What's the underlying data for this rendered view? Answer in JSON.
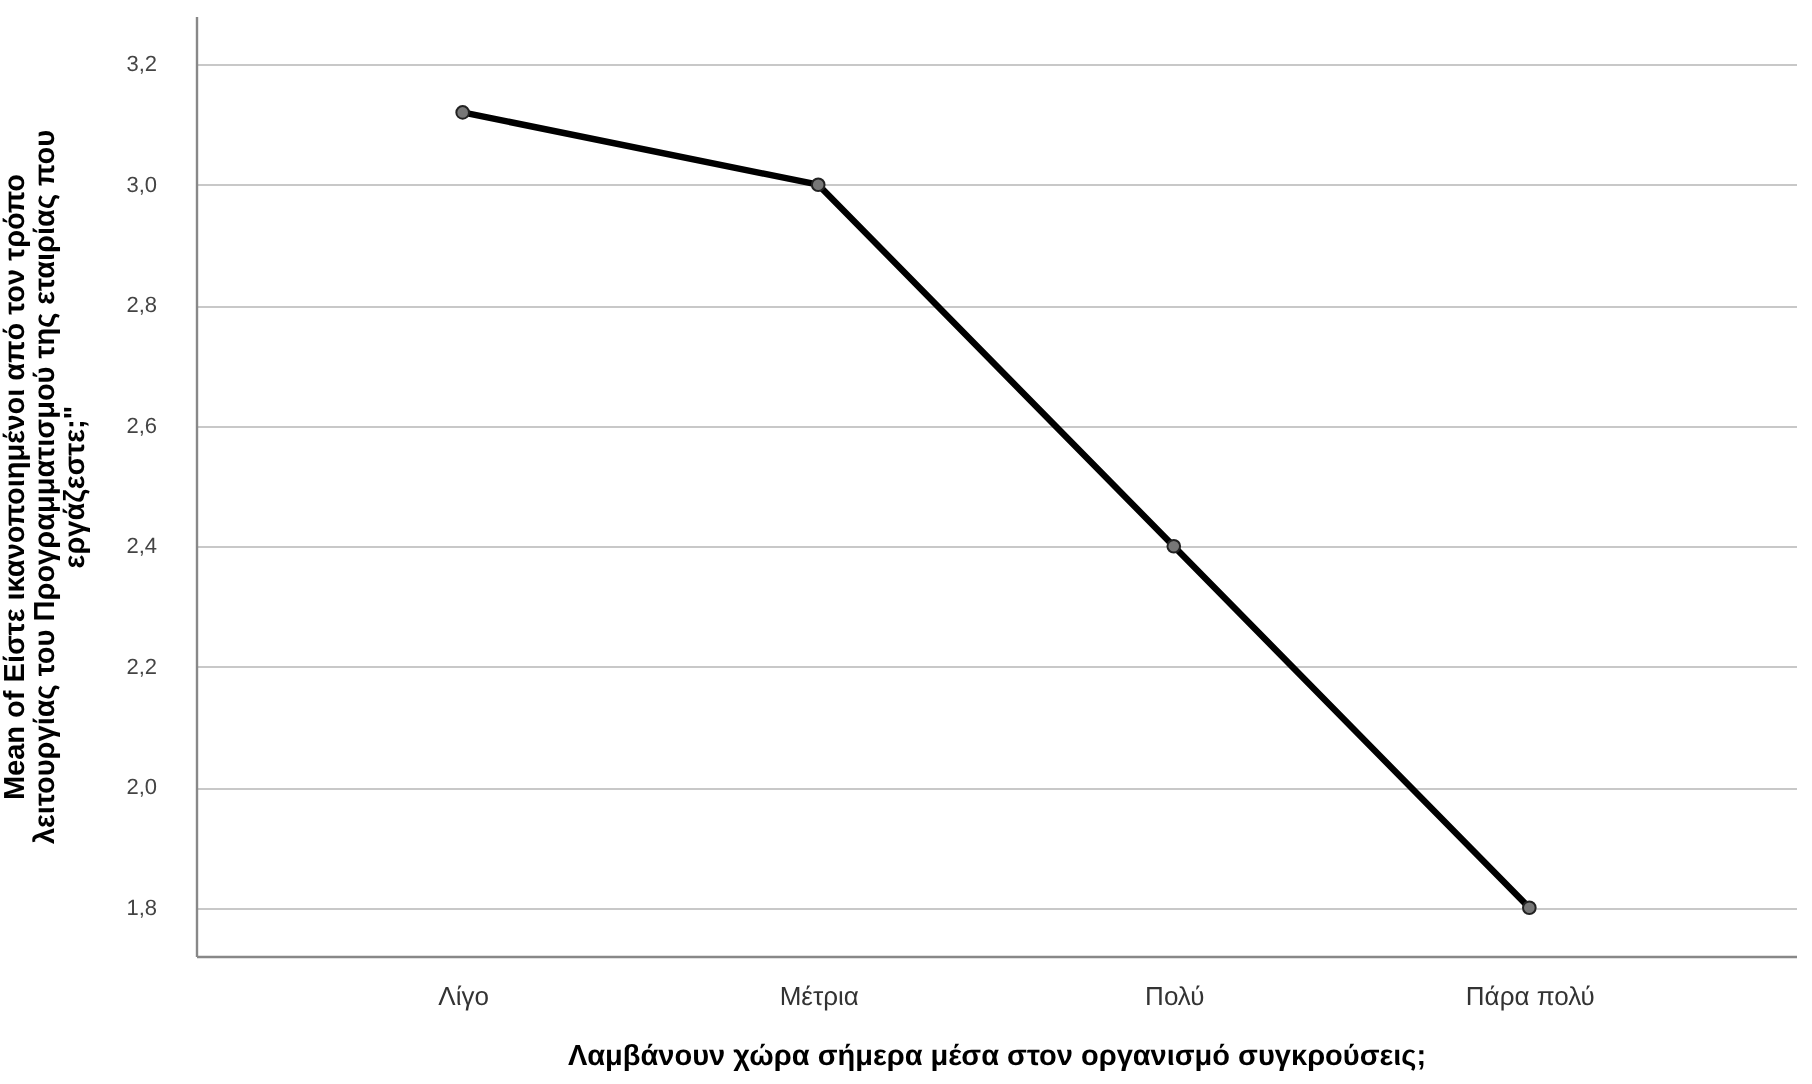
{
  "chart_data": {
    "type": "line",
    "xlabel": "Λαμβάνουν χώρα σήμερα μέσα στον οργανισμό συγκρούσεις;",
    "ylabel": "Mean of Είστε ικανοποιημένοι από τον τρόπο λειτουργίας του Προγραμματισμού της εταιρίας που εργάζεστε;\"",
    "categories": [
      "Λίγο",
      "Μέτρια",
      "Πολύ",
      "Πάρα πολύ"
    ],
    "series": [
      {
        "color": "#000000",
        "values": [
          3.12,
          3.0,
          2.4,
          1.8
        ]
      }
    ],
    "ylim": [
      1.72,
      3.28
    ],
    "yticks": [
      {
        "value": 1.8,
        "label": "1,8"
      },
      {
        "value": 2.0,
        "label": "2,0"
      },
      {
        "value": 2.2,
        "label": "2,2"
      },
      {
        "value": 2.4,
        "label": "2,4"
      },
      {
        "value": 2.6,
        "label": "2,6"
      },
      {
        "value": 2.8,
        "label": "2,8"
      },
      {
        "value": 3.0,
        "label": "3,0"
      },
      {
        "value": 3.2,
        "label": "3,2"
      }
    ],
    "grid": "y",
    "marker": "circle",
    "line_style": "solid"
  }
}
